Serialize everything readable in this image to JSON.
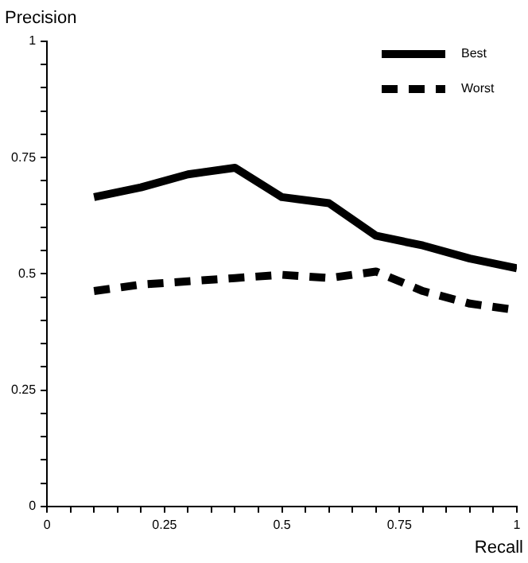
{
  "chart_data": {
    "type": "line",
    "xlabel": "Recall",
    "ylabel": "Precision",
    "x": [
      0.1,
      0.2,
      0.3,
      0.4,
      0.5,
      0.6,
      0.7,
      0.8,
      0.9,
      1.0
    ],
    "series": [
      {
        "name": "Best",
        "color": "#000000",
        "line_style": "solid",
        "values": [
          0.665,
          0.686,
          0.714,
          0.728,
          0.665,
          0.652,
          0.582,
          0.561,
          0.533,
          0.512
        ]
      },
      {
        "name": "Worst",
        "color": "#000000",
        "line_style": "dashed",
        "values": [
          0.463,
          0.477,
          0.484,
          0.491,
          0.498,
          0.491,
          0.505,
          0.463,
          0.436,
          0.422
        ]
      }
    ],
    "xlim": [
      0,
      1
    ],
    "ylim": [
      0,
      1
    ],
    "xticks": [
      0,
      {
        "value": 0.05,
        "label": null
      },
      {
        "value": 0.1,
        "label": null
      },
      {
        "value": 0.15,
        "label": null
      },
      {
        "value": 0.2,
        "label": null
      },
      0.25,
      {
        "value": 0.3,
        "label": null
      },
      {
        "value": 0.35,
        "label": null
      },
      {
        "value": 0.4,
        "label": null
      },
      {
        "value": 0.45,
        "label": null
      },
      0.5,
      {
        "value": 0.55,
        "label": null
      },
      {
        "value": 0.6,
        "label": null
      },
      {
        "value": 0.65,
        "label": null
      },
      {
        "value": 0.7,
        "label": null
      },
      0.75,
      {
        "value": 0.8,
        "label": null
      },
      {
        "value": 0.85,
        "label": null
      },
      {
        "value": 0.9,
        "label": null
      },
      {
        "value": 0.95,
        "label": null
      },
      1
    ],
    "yticks": [
      0,
      {
        "value": 0.05,
        "label": null
      },
      {
        "value": 0.1,
        "label": null
      },
      {
        "value": 0.15,
        "label": null
      },
      {
        "value": 0.2,
        "label": null
      },
      0.25,
      {
        "value": 0.3,
        "label": null
      },
      {
        "value": 0.35,
        "label": null
      },
      {
        "value": 0.4,
        "label": null
      },
      {
        "value": 0.45,
        "label": null
      },
      0.5,
      {
        "value": 0.55,
        "label": null
      },
      {
        "value": 0.6,
        "label": null
      },
      {
        "value": 0.65,
        "label": null
      },
      {
        "value": 0.7,
        "label": null
      },
      0.75,
      {
        "value": 0.8,
        "label": null
      },
      {
        "value": 0.85,
        "label": null
      },
      {
        "value": 0.9,
        "label": null
      },
      {
        "value": 0.95,
        "label": null
      },
      1
    ],
    "grid": false,
    "legend": "top right",
    "marker": "none"
  }
}
